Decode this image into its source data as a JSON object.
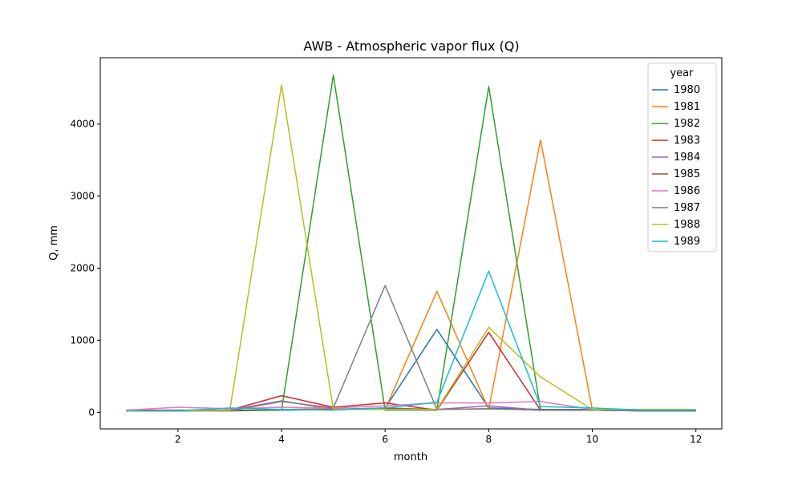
{
  "chart_data": {
    "type": "line",
    "title": "AWB - Atmospheric vapor flux (Q)",
    "xlabel": "month",
    "ylabel": "Q, mm",
    "xlim": [
      0.5,
      12.5
    ],
    "ylim": [
      -230,
      4920
    ],
    "xticks": [
      2,
      4,
      6,
      8,
      10,
      12
    ],
    "yticks": [
      0,
      1000,
      2000,
      3000,
      4000
    ],
    "grid": false,
    "legend": {
      "title": "year",
      "placement": "top-right"
    },
    "x": [
      1,
      2,
      3,
      4,
      5,
      6,
      7,
      8,
      9,
      10,
      11,
      12
    ],
    "series": [
      {
        "name": "1980",
        "color": "#1f77b4",
        "values": [
          20,
          20,
          30,
          30,
          40,
          60,
          1150,
          60,
          40,
          40,
          20,
          20
        ]
      },
      {
        "name": "1981",
        "color": "#ff7f0e",
        "values": [
          20,
          20,
          20,
          40,
          50,
          40,
          1680,
          40,
          3780,
          40,
          30,
          30
        ]
      },
      {
        "name": "1982",
        "color": "#2ca02c",
        "values": [
          20,
          20,
          20,
          30,
          4680,
          30,
          30,
          4520,
          30,
          30,
          20,
          20
        ]
      },
      {
        "name": "1983",
        "color": "#d62728",
        "values": [
          30,
          30,
          30,
          230,
          70,
          130,
          30,
          1110,
          30,
          30,
          20,
          20
        ]
      },
      {
        "name": "1984",
        "color": "#9467bd",
        "values": [
          20,
          20,
          30,
          160,
          40,
          60,
          40,
          90,
          30,
          30,
          20,
          20
        ]
      },
      {
        "name": "1985",
        "color": "#8c564b",
        "values": [
          20,
          30,
          20,
          40,
          40,
          50,
          40,
          50,
          30,
          30,
          20,
          20
        ]
      },
      {
        "name": "1986",
        "color": "#e377c2",
        "values": [
          30,
          70,
          50,
          70,
          60,
          90,
          130,
          130,
          150,
          40,
          40,
          40
        ]
      },
      {
        "name": "1987",
        "color": "#7f7f7f",
        "values": [
          20,
          20,
          20,
          150,
          60,
          1760,
          40,
          50,
          30,
          30,
          20,
          20
        ]
      },
      {
        "name": "1988",
        "color": "#bcbd22",
        "values": [
          20,
          20,
          20,
          4540,
          40,
          40,
          40,
          1180,
          490,
          40,
          40,
          40
        ]
      },
      {
        "name": "1989",
        "color": "#17becf",
        "values": [
          20,
          20,
          60,
          40,
          30,
          60,
          140,
          1960,
          80,
          60,
          30,
          30
        ]
      }
    ]
  }
}
